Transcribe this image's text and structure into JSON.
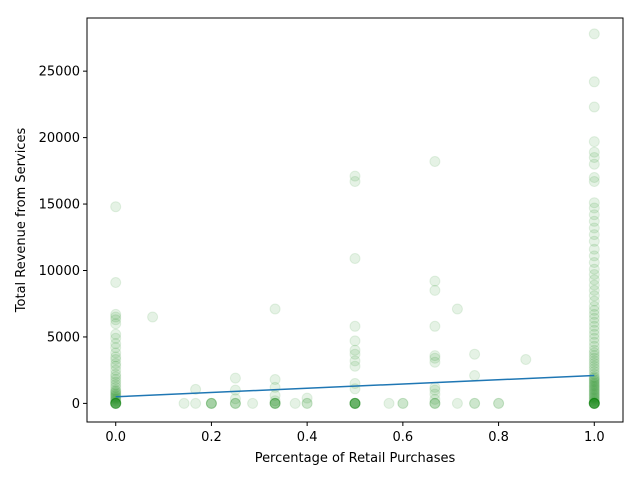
{
  "chart_data": {
    "type": "scatter",
    "xlabel": "Percentage of Retail Purchases",
    "ylabel": "Total Revenue from Services",
    "xlim": [
      -0.06,
      1.06
    ],
    "ylim": [
      -1400,
      29000
    ],
    "xticks": [
      0.0,
      0.2,
      0.4,
      0.6,
      0.8,
      1.0
    ],
    "xtick_labels": [
      "0.0",
      "0.2",
      "0.4",
      "0.6",
      "0.8",
      "1.0"
    ],
    "yticks": [
      0,
      5000,
      10000,
      15000,
      20000,
      25000
    ],
    "ytick_labels": [
      "0",
      "5000",
      "10000",
      "15000",
      "20000",
      "25000"
    ],
    "grid": false,
    "point_color": "#008000",
    "point_alpha": 0.1,
    "line_color": "#1f77b4",
    "scatter_points": [
      [
        0.0,
        0
      ],
      [
        0.0,
        0
      ],
      [
        0.0,
        0
      ],
      [
        0.0,
        0
      ],
      [
        0.0,
        0
      ],
      [
        0.0,
        0
      ],
      [
        0.0,
        0
      ],
      [
        0.0,
        0
      ],
      [
        0.0,
        100
      ],
      [
        0.0,
        200
      ],
      [
        0.0,
        300
      ],
      [
        0.0,
        400
      ],
      [
        0.0,
        500
      ],
      [
        0.0,
        600
      ],
      [
        0.0,
        700
      ],
      [
        0.0,
        800
      ],
      [
        0.0,
        900
      ],
      [
        0.0,
        1000
      ],
      [
        0.0,
        1200
      ],
      [
        0.0,
        1400
      ],
      [
        0.0,
        1600
      ],
      [
        0.0,
        1800
      ],
      [
        0.0,
        2000
      ],
      [
        0.0,
        2200
      ],
      [
        0.0,
        2500
      ],
      [
        0.0,
        2800
      ],
      [
        0.0,
        3000
      ],
      [
        0.0,
        3300
      ],
      [
        0.0,
        3500
      ],
      [
        0.0,
        3800
      ],
      [
        0.0,
        4200
      ],
      [
        0.0,
        4500
      ],
      [
        0.0,
        4900
      ],
      [
        0.0,
        5200
      ],
      [
        0.0,
        6000
      ],
      [
        0.0,
        6300
      ],
      [
        0.0,
        6500
      ],
      [
        0.0,
        6700
      ],
      [
        0.0,
        9100
      ],
      [
        0.0,
        14800
      ],
      [
        0.077,
        6500
      ],
      [
        0.143,
        0
      ],
      [
        0.167,
        0
      ],
      [
        0.167,
        1050
      ],
      [
        0.2,
        0
      ],
      [
        0.2,
        0
      ],
      [
        0.2,
        0
      ],
      [
        0.2,
        0
      ],
      [
        0.25,
        0
      ],
      [
        0.25,
        0
      ],
      [
        0.25,
        0
      ],
      [
        0.25,
        350
      ],
      [
        0.25,
        1000
      ],
      [
        0.25,
        1900
      ],
      [
        0.286,
        0
      ],
      [
        0.333,
        0
      ],
      [
        0.333,
        0
      ],
      [
        0.333,
        0
      ],
      [
        0.333,
        0
      ],
      [
        0.333,
        0
      ],
      [
        0.333,
        200
      ],
      [
        0.333,
        600
      ],
      [
        0.333,
        1200
      ],
      [
        0.333,
        1800
      ],
      [
        0.333,
        7100
      ],
      [
        0.375,
        0
      ],
      [
        0.4,
        0
      ],
      [
        0.4,
        0
      ],
      [
        0.4,
        400
      ],
      [
        0.5,
        0
      ],
      [
        0.5,
        0
      ],
      [
        0.5,
        0
      ],
      [
        0.5,
        0
      ],
      [
        0.5,
        0
      ],
      [
        0.5,
        0
      ],
      [
        0.5,
        0
      ],
      [
        0.5,
        0
      ],
      [
        0.5,
        1100
      ],
      [
        0.5,
        1500
      ],
      [
        0.5,
        2800
      ],
      [
        0.5,
        3200
      ],
      [
        0.5,
        3700
      ],
      [
        0.5,
        4000
      ],
      [
        0.5,
        4700
      ],
      [
        0.5,
        5800
      ],
      [
        0.5,
        10900
      ],
      [
        0.5,
        16700
      ],
      [
        0.5,
        17100
      ],
      [
        0.571,
        0
      ],
      [
        0.6,
        0
      ],
      [
        0.6,
        0
      ],
      [
        0.667,
        0
      ],
      [
        0.667,
        0
      ],
      [
        0.667,
        0
      ],
      [
        0.667,
        300
      ],
      [
        0.667,
        700
      ],
      [
        0.667,
        1000
      ],
      [
        0.667,
        1200
      ],
      [
        0.667,
        3100
      ],
      [
        0.667,
        3400
      ],
      [
        0.667,
        3600
      ],
      [
        0.667,
        5800
      ],
      [
        0.667,
        8500
      ],
      [
        0.667,
        9200
      ],
      [
        0.667,
        18200
      ],
      [
        0.714,
        0
      ],
      [
        0.714,
        7100
      ],
      [
        0.75,
        0
      ],
      [
        0.75,
        0
      ],
      [
        0.75,
        2100
      ],
      [
        0.75,
        3700
      ],
      [
        0.8,
        0
      ],
      [
        0.8,
        0
      ],
      [
        0.857,
        3300
      ],
      [
        1.0,
        0
      ],
      [
        1.0,
        0
      ],
      [
        1.0,
        0
      ],
      [
        1.0,
        0
      ],
      [
        1.0,
        0
      ],
      [
        1.0,
        0
      ],
      [
        1.0,
        0
      ],
      [
        1.0,
        0
      ],
      [
        1.0,
        0
      ],
      [
        1.0,
        0
      ],
      [
        1.0,
        100
      ],
      [
        1.0,
        200
      ],
      [
        1.0,
        300
      ],
      [
        1.0,
        400
      ],
      [
        1.0,
        500
      ],
      [
        1.0,
        600
      ],
      [
        1.0,
        700
      ],
      [
        1.0,
        800
      ],
      [
        1.0,
        900
      ],
      [
        1.0,
        1000
      ],
      [
        1.0,
        1100
      ],
      [
        1.0,
        1200
      ],
      [
        1.0,
        1300
      ],
      [
        1.0,
        1400
      ],
      [
        1.0,
        1500
      ],
      [
        1.0,
        1600
      ],
      [
        1.0,
        1700
      ],
      [
        1.0,
        1800
      ],
      [
        1.0,
        1900
      ],
      [
        1.0,
        2000
      ],
      [
        1.0,
        2200
      ],
      [
        1.0,
        2400
      ],
      [
        1.0,
        2600
      ],
      [
        1.0,
        2800
      ],
      [
        1.0,
        3000
      ],
      [
        1.0,
        3200
      ],
      [
        1.0,
        3400
      ],
      [
        1.0,
        3600
      ],
      [
        1.0,
        3800
      ],
      [
        1.0,
        4000
      ],
      [
        1.0,
        4300
      ],
      [
        1.0,
        4600
      ],
      [
        1.0,
        4900
      ],
      [
        1.0,
        5200
      ],
      [
        1.0,
        5500
      ],
      [
        1.0,
        5800
      ],
      [
        1.0,
        6100
      ],
      [
        1.0,
        6400
      ],
      [
        1.0,
        6700
      ],
      [
        1.0,
        7000
      ],
      [
        1.0,
        7300
      ],
      [
        1.0,
        7700
      ],
      [
        1.0,
        8100
      ],
      [
        1.0,
        8500
      ],
      [
        1.0,
        8900
      ],
      [
        1.0,
        9300
      ],
      [
        1.0,
        9700
      ],
      [
        1.0,
        10100
      ],
      [
        1.0,
        10600
      ],
      [
        1.0,
        11100
      ],
      [
        1.0,
        11600
      ],
      [
        1.0,
        12200
      ],
      [
        1.0,
        12700
      ],
      [
        1.0,
        13200
      ],
      [
        1.0,
        13700
      ],
      [
        1.0,
        14200
      ],
      [
        1.0,
        14700
      ],
      [
        1.0,
        15100
      ],
      [
        1.0,
        16700
      ],
      [
        1.0,
        17000
      ],
      [
        1.0,
        18000
      ],
      [
        1.0,
        18500
      ],
      [
        1.0,
        18900
      ],
      [
        1.0,
        19700
      ],
      [
        1.0,
        22300
      ],
      [
        1.0,
        24200
      ],
      [
        1.0,
        27800
      ]
    ],
    "regression_line": {
      "x": [
        0.0,
        1.0
      ],
      "y": [
        500,
        2100
      ]
    }
  }
}
